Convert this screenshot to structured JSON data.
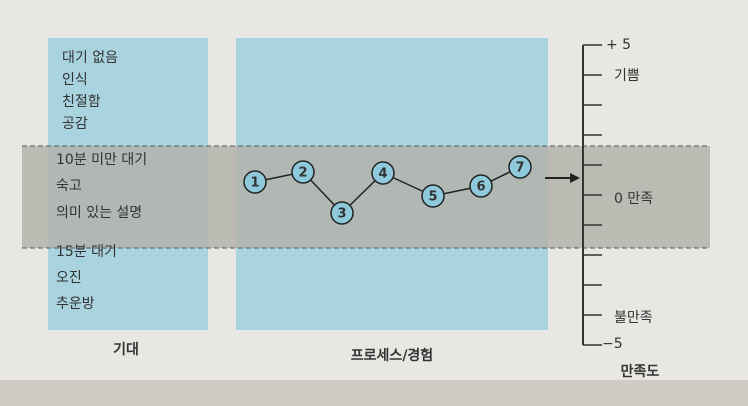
{
  "expectations": {
    "top": [
      "대기 없음",
      "인식",
      "친절함",
      "공감"
    ],
    "middle": [
      "10분 미만 대기",
      "숙고",
      "의미 있는 설명"
    ],
    "bottom": [
      "15분 대기",
      "오진",
      "추운방"
    ]
  },
  "columns": {
    "expectation": "기대",
    "process": "프로세스/경험",
    "satisfaction": "만족도"
  },
  "scale": {
    "top": "+ 5",
    "joy": "기쁨",
    "neutral": "0 만족",
    "dissatisfied": "불만족",
    "bottom": "−5"
  },
  "nodes": [
    {
      "label": "1"
    },
    {
      "label": "2"
    },
    {
      "label": "3"
    },
    {
      "label": "4"
    },
    {
      "label": "5"
    },
    {
      "label": "6"
    },
    {
      "label": "7"
    }
  ]
}
